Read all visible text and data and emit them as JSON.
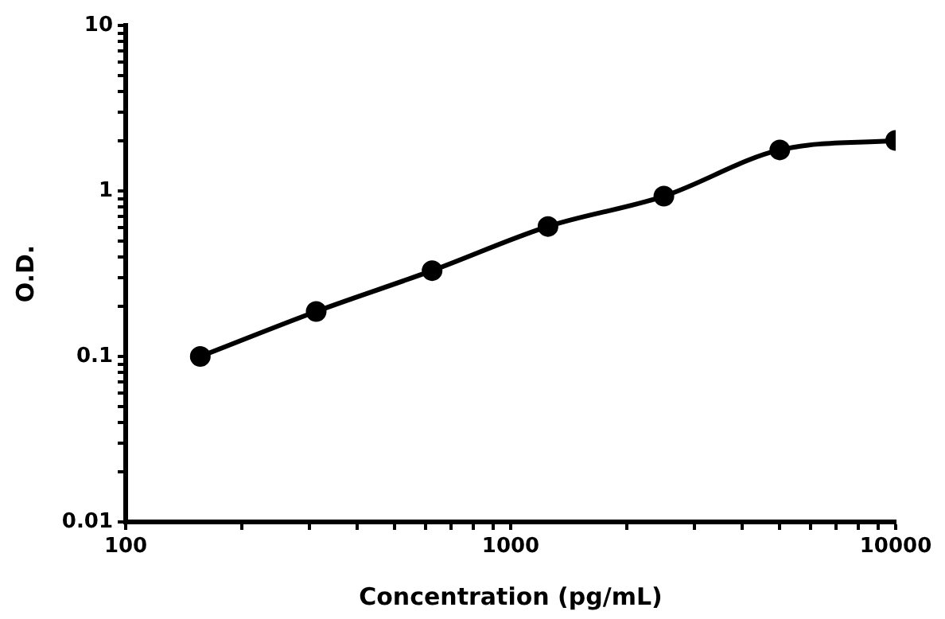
{
  "chart_data": {
    "type": "line",
    "xlabel": "Concentration (pg/mL)",
    "ylabel": "O.D.",
    "log": "xy",
    "x": [
      156.25,
      312.5,
      625,
      1250,
      2500,
      5000,
      10000
    ],
    "series": [
      {
        "color": "#000000",
        "values": [
          0.1,
          0.187,
          0.33,
          0.61,
          0.93,
          1.77,
          2.02
        ]
      }
    ],
    "xlim": [
      100,
      10000
    ],
    "xticks": [
      100,
      {
        "value": 200,
        "label": null
      },
      {
        "value": 300,
        "label": null
      },
      {
        "value": 400,
        "label": null
      },
      {
        "value": 500,
        "label": null
      },
      {
        "value": 600,
        "label": null
      },
      {
        "value": 700,
        "label": null
      },
      {
        "value": 800,
        "label": null
      },
      {
        "value": 900,
        "label": null
      },
      1000,
      {
        "value": 2000,
        "label": null
      },
      {
        "value": 3000,
        "label": null
      },
      {
        "value": 4000,
        "label": null
      },
      {
        "value": 5000,
        "label": null
      },
      {
        "value": 6000,
        "label": null
      },
      {
        "value": 7000,
        "label": null
      },
      {
        "value": 8000,
        "label": null
      },
      {
        "value": 9000,
        "label": null
      },
      10000
    ],
    "ylim": [
      0.01,
      10
    ],
    "yticks": [
      0.01,
      {
        "value": 0.02,
        "label": null
      },
      {
        "value": 0.03,
        "label": null
      },
      {
        "value": 0.04,
        "label": null
      },
      {
        "value": 0.05,
        "label": null
      },
      {
        "value": 0.06,
        "label": null
      },
      {
        "value": 0.07,
        "label": null
      },
      {
        "value": 0.08,
        "label": null
      },
      {
        "value": 0.09,
        "label": null
      },
      0.1,
      {
        "value": 0.2,
        "label": null
      },
      {
        "value": 0.3,
        "label": null
      },
      {
        "value": 0.4,
        "label": null
      },
      {
        "value": 0.5,
        "label": null
      },
      {
        "value": 0.6,
        "label": null
      },
      {
        "value": 0.7,
        "label": null
      },
      {
        "value": 0.8,
        "label": null
      },
      {
        "value": 0.9,
        "label": null
      },
      1,
      {
        "value": 2,
        "label": null
      },
      {
        "value": 3,
        "label": null
      },
      {
        "value": 4,
        "label": null
      },
      {
        "value": 5,
        "label": null
      },
      {
        "value": 6,
        "label": null
      },
      {
        "value": 7,
        "label": null
      },
      {
        "value": 8,
        "label": null
      },
      {
        "value": 9,
        "label": null
      },
      10
    ],
    "grid": false,
    "legend": false,
    "marker": "circle",
    "line_style": "solid"
  }
}
